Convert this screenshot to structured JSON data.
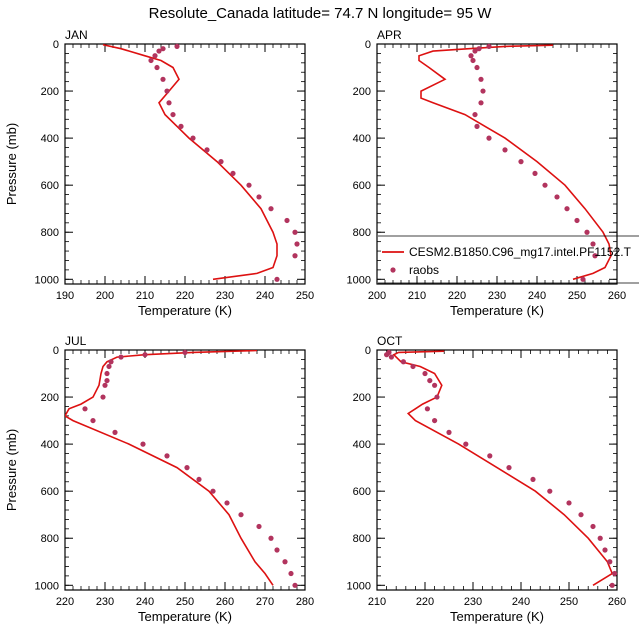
{
  "chart_data": {
    "type": "line",
    "title": "Resolute_Canada  latitude= 74.7 N longitude= 95 W",
    "ylabel": "Pressure (mb)",
    "xlabel": "Temperature (K)",
    "ylim": [
      1020,
      0
    ],
    "yticks": [
      "0",
      "200",
      "400",
      "600",
      "800",
      "1000"
    ],
    "legend": {
      "model_label": "CESM2.B1850.C96_mg17.intel.PF1152.T",
      "obs_label": "raobs",
      "model_color": "#dd1111",
      "obs_color": "#b2345e"
    },
    "panels": [
      {
        "label": "JAN",
        "xlim": [
          190,
          250
        ],
        "xticks": [
          "190",
          "200",
          "210",
          "220",
          "230",
          "240",
          "250"
        ],
        "model": {
          "pressure": [
            3,
            20,
            50,
            70,
            100,
            150,
            200,
            250,
            300,
            400,
            500,
            600,
            700,
            800,
            850,
            900,
            950,
            975,
            1000
          ],
          "temp": [
            199.5,
            204,
            210,
            214,
            217,
            218.5,
            216,
            213.5,
            215,
            221,
            228,
            234,
            239,
            242,
            243,
            243,
            242,
            238,
            227
          ]
        },
        "obs": {
          "pressure": [
            10,
            20,
            30,
            50,
            70,
            100,
            150,
            200,
            250,
            300,
            350,
            400,
            450,
            500,
            550,
            600,
            650,
            700,
            750,
            800,
            850,
            900,
            1000
          ],
          "temp": [
            218,
            214.5,
            213.5,
            212.5,
            211.5,
            213,
            214.5,
            215.5,
            216,
            217,
            219,
            222,
            225.5,
            229,
            232,
            236,
            238.5,
            241.5,
            245.5,
            247.5,
            248,
            247.5,
            243
          ]
        }
      },
      {
        "label": "APR",
        "xlim": [
          200,
          260
        ],
        "xticks": [
          "200",
          "210",
          "220",
          "230",
          "240",
          "250",
          "260"
        ],
        "model": {
          "pressure": [
            5,
            10,
            20,
            30,
            50,
            70,
            100,
            150,
            200,
            230,
            250,
            300,
            400,
            500,
            600,
            700,
            800,
            850,
            900,
            950,
            975,
            1000
          ],
          "temp": [
            244,
            232,
            223,
            214,
            210.5,
            210.5,
            213,
            217,
            211,
            211,
            214,
            222,
            232,
            240,
            247,
            252,
            256.5,
            258,
            258.5,
            257,
            254,
            249
          ]
        },
        "obs": {
          "pressure": [
            10,
            20,
            30,
            50,
            70,
            100,
            150,
            200,
            250,
            300,
            350,
            400,
            450,
            500,
            550,
            600,
            650,
            700,
            750,
            800,
            850,
            900,
            1000
          ],
          "temp": [
            228,
            225.5,
            224.5,
            223.5,
            224,
            225,
            226,
            226.5,
            226,
            224.5,
            225,
            228,
            232,
            236,
            239.5,
            242,
            245,
            247.5,
            250,
            252.5,
            254,
            254.5,
            251.5
          ]
        }
      },
      {
        "label": "JUL",
        "xlim": [
          220,
          280
        ],
        "xticks": [
          "220",
          "230",
          "240",
          "250",
          "260",
          "270",
          "280"
        ],
        "model": {
          "pressure": [
            2,
            10,
            20,
            30,
            50,
            70,
            100,
            150,
            200,
            230,
            250,
            280,
            300,
            400,
            500,
            600,
            700,
            800,
            900,
            950,
            1000
          ],
          "temp": [
            268,
            252,
            240,
            233,
            230.5,
            229.5,
            229,
            228.5,
            227,
            224,
            221,
            220,
            222,
            236,
            248,
            256,
            261,
            264,
            267.5,
            270,
            272
          ]
        },
        "obs": {
          "pressure": [
            10,
            20,
            30,
            50,
            70,
            100,
            130,
            150,
            200,
            250,
            300,
            350,
            400,
            450,
            500,
            550,
            600,
            650,
            700,
            750,
            800,
            850,
            900,
            950,
            1000
          ],
          "temp": [
            250,
            240,
            234,
            231.5,
            231,
            230.5,
            230.5,
            230,
            229.5,
            225,
            227,
            232.5,
            239.5,
            245.5,
            250.5,
            253.5,
            257,
            260.5,
            264,
            268.5,
            271.5,
            273,
            275,
            276.5,
            277.5
          ]
        }
      },
      {
        "label": "OCT",
        "xlim": [
          210,
          260
        ],
        "xticks": [
          "210",
          "220",
          "230",
          "240",
          "250",
          "260"
        ],
        "model": {
          "pressure": [
            5,
            10,
            20,
            50,
            70,
            100,
            150,
            200,
            230,
            250,
            270,
            300,
            400,
            500,
            600,
            700,
            800,
            850,
            900,
            950,
            1000
          ],
          "temp": [
            224,
            214.5,
            213.5,
            215,
            219,
            222,
            223.5,
            222.5,
            219.5,
            218,
            216.5,
            218,
            227,
            235,
            243,
            249,
            254,
            256,
            258,
            259,
            255
          ]
        },
        "obs": {
          "pressure": [
            10,
            20,
            30,
            50,
            70,
            100,
            130,
            150,
            200,
            250,
            300,
            350,
            400,
            450,
            500,
            550,
            600,
            650,
            700,
            750,
            800,
            850,
            900,
            950,
            1000
          ],
          "temp": [
            212.5,
            212,
            213,
            215.5,
            217.5,
            220,
            221,
            222,
            222.5,
            220.5,
            222,
            225,
            228.5,
            233.5,
            237.5,
            242.5,
            246,
            250,
            252.5,
            255,
            256.5,
            257.5,
            258.5,
            259.5,
            259
          ]
        }
      }
    ]
  }
}
